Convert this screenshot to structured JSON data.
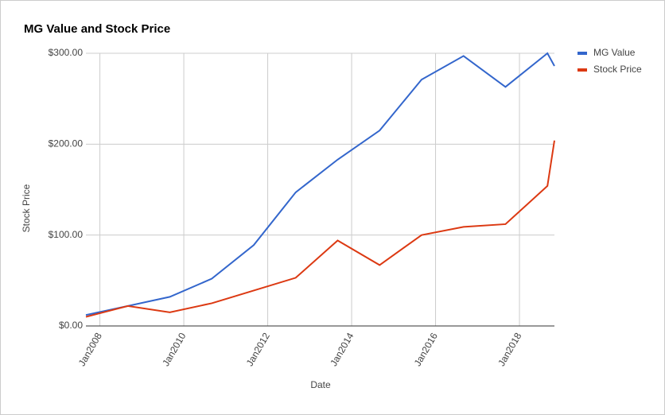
{
  "chart_data": {
    "type": "line",
    "title": "MG Value and Stock Price",
    "x_label": "Date",
    "y_label": "Stock Price",
    "x": [
      "2007-09",
      "2008-09",
      "2009-09",
      "2010-09",
      "2011-09",
      "2012-09",
      "2013-09",
      "2014-09",
      "2015-09",
      "2016-09",
      "2017-09",
      "2018-09",
      "2018-11"
    ],
    "series": [
      {
        "name": "MG Value",
        "color": "#3366cc",
        "values": [
          12,
          22,
          32,
          52,
          89,
          147,
          183,
          215,
          271,
          297,
          263,
          300,
          286
        ]
      },
      {
        "name": "Stock Price",
        "color": "#dc3912",
        "values": [
          10,
          22,
          15,
          25,
          39,
          53,
          94,
          67,
          100,
          109,
          112,
          154,
          204
        ]
      }
    ],
    "xlim": [
      "2007-09",
      "2018-11"
    ],
    "xticks": [
      {
        "value": "2008-01",
        "label": "Jan2008"
      },
      {
        "value": "2010-01",
        "label": "Jan2010"
      },
      {
        "value": "2012-01",
        "label": "Jan2012"
      },
      {
        "value": "2014-01",
        "label": "Jan2014"
      },
      {
        "value": "2016-01",
        "label": "Jan2016"
      },
      {
        "value": "2018-01",
        "label": "Jan2018"
      }
    ],
    "ylim": [
      0,
      300
    ],
    "yticks": [
      {
        "value": 0,
        "label": "$0.00"
      },
      {
        "value": 100,
        "label": "$100.00"
      },
      {
        "value": 200,
        "label": "$200.00"
      },
      {
        "value": 300,
        "label": "$300.00"
      }
    ],
    "grid": true,
    "legend": "right"
  }
}
